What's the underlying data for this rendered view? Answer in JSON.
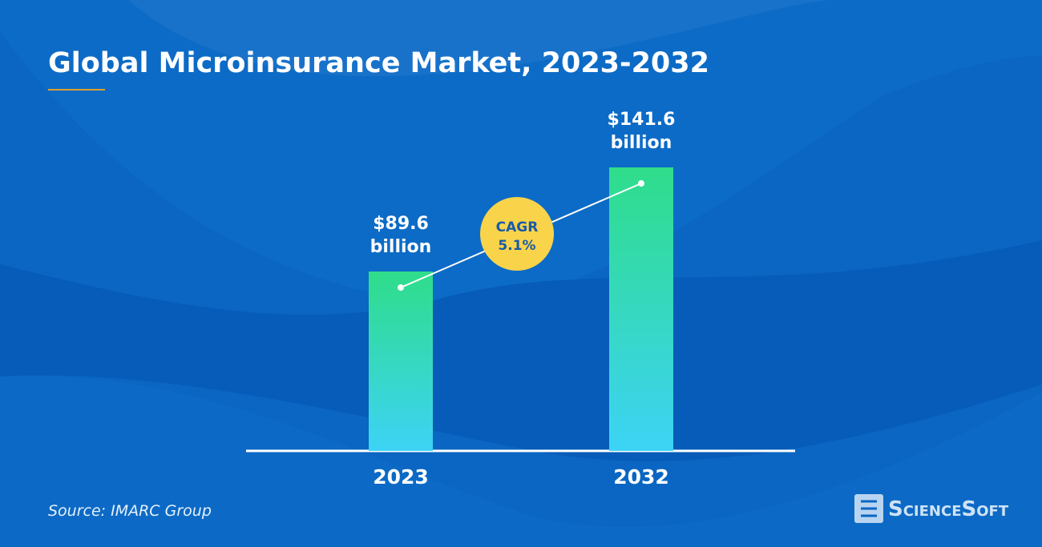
{
  "chart_data": {
    "type": "bar",
    "title": "Global Microinsurance Market, 2023-2032",
    "categories": [
      "2023",
      "2032"
    ],
    "values": [
      89.6,
      141.6
    ],
    "value_labels": [
      "$89.6 billion",
      "$141.6 billion"
    ],
    "color": "#2fdd8a",
    "annotation": [
      "CAGR",
      "5.1%"
    ],
    "source": "Source: IMARC Group"
  },
  "brand": "ScienceSoft"
}
